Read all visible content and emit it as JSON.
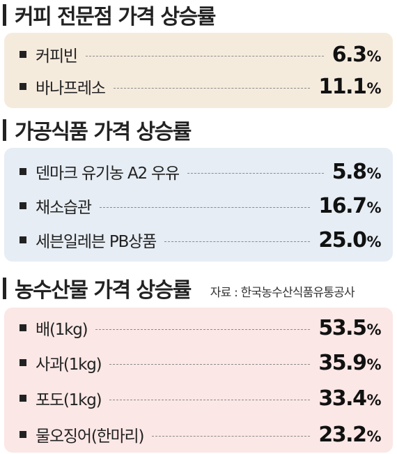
{
  "colors": {
    "coffee_bg": "#f5ebdd",
    "processed_bg": "#e6edf4",
    "farm_bg": "#fbe7e5",
    "text": "#222222"
  },
  "chart_data": [
    {
      "type": "table",
      "title": "커피 전문점 가격 상승률",
      "categories": [
        "커피빈",
        "바나프레소"
      ],
      "values": [
        6.3,
        11.1
      ],
      "unit": "%"
    },
    {
      "type": "table",
      "title": "가공식품 가격 상승률",
      "categories": [
        "덴마크 유기농 A2 우유",
        "채소습관",
        "세븐일레븐 PB상품"
      ],
      "values": [
        5.8,
        16.7,
        25.0
      ],
      "unit": "%"
    },
    {
      "type": "table",
      "title": "농수산물 가격 상승률",
      "source": "자료 : 한국농수산식품유통공사",
      "categories": [
        "배(1kg)",
        "사과(1kg)",
        "포도(1kg)",
        "물오징어(한마리)"
      ],
      "values": [
        53.5,
        35.9,
        33.4,
        23.2
      ],
      "unit": "%"
    }
  ],
  "sections": [
    {
      "title": "커피 전문점 가격 상승률",
      "items": [
        {
          "label": "커피빈",
          "value": "6.3",
          "unit": "%"
        },
        {
          "label": "바나프레소",
          "value": "11.1",
          "unit": "%"
        }
      ]
    },
    {
      "title": "가공식품 가격 상승률",
      "items": [
        {
          "label": "덴마크 유기농 A2 우유",
          "value": "5.8",
          "unit": "%"
        },
        {
          "label": "채소습관",
          "value": "16.7",
          "unit": "%"
        },
        {
          "label": "세븐일레븐 PB상품",
          "value": "25.0",
          "unit": "%"
        }
      ]
    },
    {
      "title": "농수산물 가격 상승률",
      "source": "자료 : 한국농수산식품유통공사",
      "items": [
        {
          "label": "배(1kg)",
          "value": "53.5",
          "unit": "%"
        },
        {
          "label": "사과(1kg)",
          "value": "35.9",
          "unit": "%"
        },
        {
          "label": "포도(1kg)",
          "value": "33.4",
          "unit": "%"
        },
        {
          "label": "물오징어(한마리)",
          "value": "23.2",
          "unit": "%"
        }
      ]
    }
  ]
}
